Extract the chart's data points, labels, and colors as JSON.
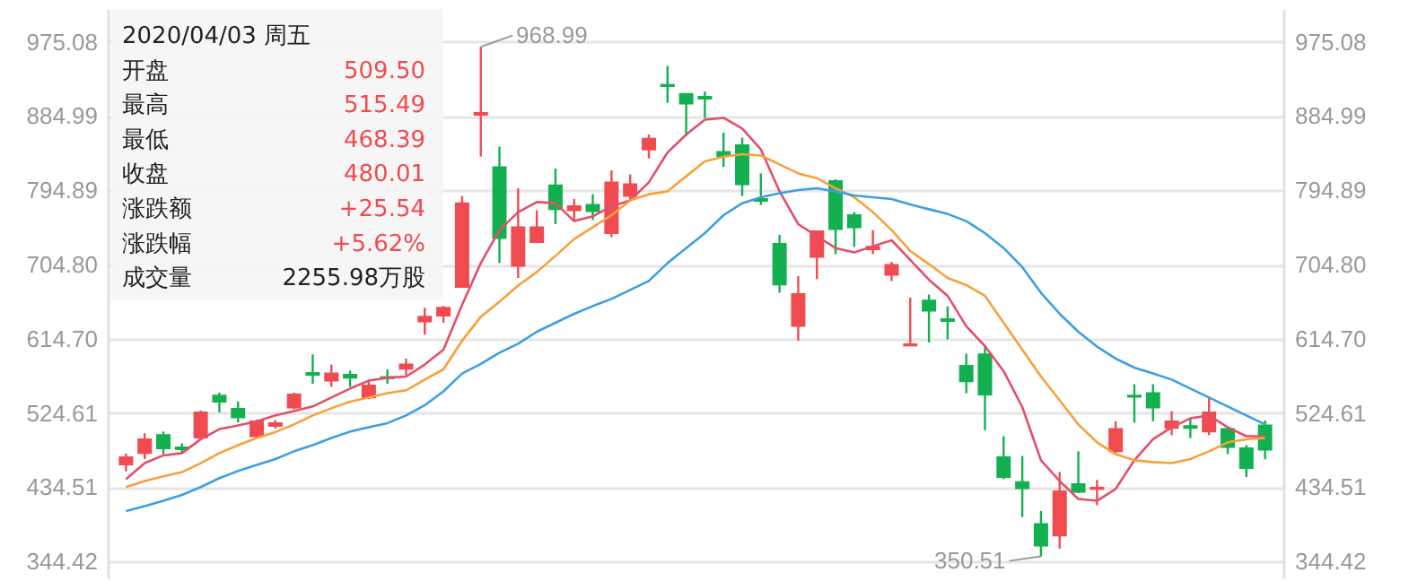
{
  "chart_data": {
    "type": "candlestick",
    "categories": [
      null,
      null,
      null,
      null,
      null,
      null,
      null,
      null,
      null,
      null,
      null,
      null,
      null,
      null,
      null,
      null,
      null,
      null,
      null,
      null,
      null,
      null,
      null,
      null,
      null,
      null,
      null,
      null,
      null,
      null,
      null,
      null,
      null,
      null,
      null,
      null,
      null,
      null,
      null,
      null,
      null,
      null,
      null,
      null,
      null,
      null,
      null,
      null,
      null,
      null,
      null,
      null,
      null,
      null,
      null,
      null,
      null,
      null,
      null,
      null,
      null,
      null
    ],
    "ohlc": [
      [
        462.2,
        475.3,
        453.7,
        470.9
      ],
      [
        475.9,
        499.9,
        468.7,
        492.7
      ],
      [
        497.7,
        502.0,
        474.6,
        481.8
      ],
      [
        482.9,
        487.7,
        475.9,
        480.7
      ],
      [
        494.9,
        527.5,
        494.9,
        525.3
      ],
      [
        545.6,
        549.3,
        525.3,
        538.4
      ],
      [
        529.7,
        538.4,
        512.9,
        519.4
      ],
      [
        496.4,
        516.6,
        494.9,
        514.4
      ],
      [
        509.0,
        516.0,
        505.7,
        512.3
      ],
      [
        531.2,
        549.3,
        529.0,
        547.1
      ],
      [
        573.2,
        595.6,
        560.1,
        571.0
      ],
      [
        563.8,
        583.4,
        556.4,
        572.5
      ],
      [
        571.0,
        576.0,
        556.4,
        567.3
      ],
      [
        543.4,
        565.1,
        541.2,
        558.0
      ],
      [
        568.2,
        577.5,
        560.1,
        566.7
      ],
      [
        578.2,
        590.6,
        570.3,
        583.4
      ],
      [
        635.6,
        652.2,
        619.5,
        641.3
      ],
      [
        642.8,
        654.4,
        634.1,
        652.2
      ],
      [
        677.6,
        788.0,
        677.6,
        779.2
      ],
      [
        886.5,
        968.99,
        835.8,
        888.7
      ],
      [
        822.8,
        848.0,
        706.6,
        737.0
      ],
      [
        703.1,
        797.3,
        688.5,
        750.1
      ],
      [
        732.0,
        770.6,
        732.0,
        750.1
      ],
      [
        801.0,
        821.3,
        753.8,
        771.9
      ],
      [
        770.6,
        784.3,
        757.5,
        775.6
      ],
      [
        777.1,
        790.1,
        758.8,
        769.7
      ],
      [
        742.9,
        819.1,
        737.9,
        804.5
      ],
      [
        788.0,
        814.1,
        782.7,
        802.3
      ],
      [
        844.5,
        862.6,
        833.7,
        857.6
      ],
      [
        922.9,
        945.9,
        901.1,
        921.4
      ],
      [
        912.0,
        912.0,
        860.4,
        900.2
      ],
      [
        908.3,
        914.8,
        882.8,
        906.1
      ],
      [
        841.5,
        864.8,
        823.4,
        836.5
      ],
      [
        849.5,
        858.9,
        788.0,
        802.3
      ],
      [
        784.3,
        815.4,
        777.1,
        782.1
      ],
      [
        729.9,
        740.8,
        670.5,
        680.5
      ],
      [
        630.4,
        690.7,
        612.4,
        669.0
      ],
      [
        714.0,
        745.1,
        687.0,
        745.1
      ],
      [
        806.0,
        808.2,
        717.5,
        747.9
      ],
      [
        764.7,
        768.4,
        726.2,
        750.1
      ],
      [
        723.3,
        746.6,
        717.5,
        726.2
      ],
      [
        692.2,
        708.1,
        684.8,
        704.4
      ],
      [
        606.5,
        664.6,
        606.5,
        608.0
      ],
      [
        660.9,
        668.3,
        610.2,
        648.7
      ],
      [
        638.5,
        653.9,
        614.0,
        636.3
      ],
      [
        581.9,
        596.5,
        548.6,
        563.0
      ],
      [
        595.6,
        606.5,
        503.6,
        547.1
      ],
      [
        470.9,
        496.4,
        444.2,
        447.0
      ],
      [
        440.5,
        472.4,
        398.4,
        433.3
      ],
      [
        389.7,
        405.6,
        350.51,
        363.6
      ],
      [
        375.8,
        453.0,
        360.0,
        429.6
      ],
      [
        438.3,
        478.1,
        427.4,
        428.9
      ],
      [
        432.4,
        443.3,
        412.8,
        433.9
      ],
      [
        478.1,
        514.4,
        475.9,
        505.1
      ],
      [
        545.6,
        559.5,
        512.9,
        544.3
      ],
      [
        548.6,
        559.5,
        514.4,
        531.2
      ],
      [
        506.4,
        526.8,
        497.7,
        514.4
      ],
      [
        508.6,
        518.1,
        494.2,
        506.4
      ],
      [
        502.0,
        543.4,
        497.7,
        525.3
      ],
      [
        505.1,
        507.3,
        474.6,
        483.3
      ],
      [
        481.8,
        485.5,
        447.0,
        457.9
      ],
      [
        509.5,
        515.49,
        468.39,
        480.01
      ]
    ],
    "colors": [
      "#f04b50",
      "#f04b50",
      "#13b050",
      "#13b050",
      "#f04b50",
      "#13b050",
      "#13b050",
      "#f04b50",
      "#f04b50",
      "#f04b50",
      "#13b050",
      "#f04b50",
      "#13b050",
      "#f04b50",
      "#13b050",
      "#f04b50",
      "#f04b50",
      "#f04b50",
      "#f04b50",
      "#f04b50",
      "#13b050",
      "#f04b50",
      "#f04b50",
      "#13b050",
      "#f04b50",
      "#13b050",
      "#f04b50",
      "#f04b50",
      "#f04b50",
      "#13b050",
      "#13b050",
      "#13b050",
      "#13b050",
      "#13b050",
      "#13b050",
      "#13b050",
      "#f04b50",
      "#f04b50",
      "#13b050",
      "#13b050",
      "#f04b50",
      "#f04b50",
      "#f04b50",
      "#13b050",
      "#13b050",
      "#13b050",
      "#13b050",
      "#13b050",
      "#13b050",
      "#13b050",
      "#f04b50",
      "#13b050",
      "#f04b50",
      "#f04b50",
      "#13b050",
      "#13b050",
      "#f04b50",
      "#13b050",
      "#f04b50",
      "#13b050",
      "#13b050",
      "#13b050"
    ],
    "series": [
      {
        "type": "line",
        "color": "#e2506a",
        "values": [
          444.2,
          463.7,
          473.1,
          475.9,
          492.7,
          505.1,
          509.4,
          514.4,
          521.6,
          526.8,
          532.5,
          543.4,
          554.3,
          563.8,
          567.3,
          568.8,
          583.4,
          601.5,
          655.9,
          706.6,
          746.6,
          768.4,
          780.6,
          779.2,
          757.5,
          763.2,
          775.6,
          782.7,
          804.5,
          840.8,
          862.6,
          880.7,
          882.8,
          869.8,
          844.5,
          793.6,
          753.8,
          739.2,
          724.8,
          719.6,
          727.0,
          734.2,
          710.3,
          686.4,
          666.8,
          629.8,
          605.8,
          575.4,
          531.8,
          467.2,
          442.0,
          420.2,
          418.0,
          432.4,
          467.2,
          492.7,
          507.2,
          518.1,
          521.6,
          507.2,
          496.4,
          496.4
        ]
      },
      {
        "type": "line",
        "color": "#f8a03c",
        "values": [
          434.6,
          442.0,
          447.6,
          452.8,
          463.7,
          475.9,
          485.5,
          494.2,
          501.4,
          510.7,
          521.6,
          530.3,
          538.4,
          543.4,
          548.6,
          552.1,
          565.1,
          577.5,
          612.4,
          641.3,
          659.6,
          679.2,
          695.7,
          715.3,
          735.7,
          750.1,
          764.7,
          782.7,
          790.1,
          793.6,
          811.9,
          830.0,
          835.8,
          838.7,
          837.1,
          826.3,
          815.4,
          809.7,
          797.3,
          786.4,
          768.4,
          746.6,
          721.2,
          705.3,
          688.5,
          679.8,
          666.8,
          634.1,
          601.5,
          568.8,
          539.9,
          510.7,
          489.0,
          474.6,
          467.2,
          465.0,
          463.7,
          468.7,
          478.1,
          489.0,
          492.7,
          494.2
        ]
      },
      {
        "type": "line",
        "color": "#3d9fe0",
        "values": [
          405.6,
          411.5,
          418.0,
          425.2,
          434.6,
          445.5,
          454.2,
          461.6,
          468.7,
          478.1,
          485.5,
          494.2,
          502.0,
          507.2,
          512.3,
          521.6,
          534.0,
          550.8,
          572.5,
          584.1,
          597.8,
          608.7,
          623.2,
          634.1,
          645.0,
          654.4,
          663.1,
          674.0,
          684.8,
          706.6,
          724.8,
          742.9,
          764.7,
          779.2,
          786.4,
          791.4,
          795.1,
          797.3,
          793.6,
          788.6,
          786.4,
          784.3,
          777.7,
          771.9,
          766.2,
          757.5,
          742.9,
          724.8,
          701.6,
          670.5,
          645.0,
          623.2,
          605.2,
          590.6,
          579.7,
          572.5,
          565.1,
          554.3,
          543.4,
          532.5,
          521.6,
          510.7
        ]
      }
    ],
    "ylim": [
      325,
      1015
    ],
    "yticks": [
      {
        "value": 344.42,
        "label": "344.42"
      },
      {
        "value": 434.51,
        "label": "434.51"
      },
      {
        "value": 524.61,
        "label": "524.61"
      },
      {
        "value": 614.7,
        "label": "614.70"
      },
      {
        "value": 704.8,
        "label": "704.80"
      },
      {
        "value": 794.89,
        "label": "794.89"
      },
      {
        "value": 884.99,
        "label": "884.99"
      },
      {
        "value": 975.08,
        "label": "975.08"
      }
    ],
    "y2lim": [
      325,
      1015
    ],
    "y2ticks": [
      {
        "value": 344.42,
        "label": "344.42"
      },
      {
        "value": 434.51,
        "label": "434.51"
      },
      {
        "value": 524.61,
        "label": "524.61"
      },
      {
        "value": 614.7,
        "label": "614.70"
      },
      {
        "value": 704.8,
        "label": "704.80"
      },
      {
        "value": 794.89,
        "label": "794.89"
      },
      {
        "value": 884.99,
        "label": "884.99"
      },
      {
        "value": 975.08,
        "label": "975.08"
      }
    ],
    "grid": "y",
    "tick_labels": "y",
    "annotations": [
      "968.99",
      "350.51",
      "2020/04/03 周五",
      "开盘",
      "509.50",
      "最高",
      "515.49",
      "最低",
      "468.39",
      "收盘",
      "480.01",
      "涨跌额",
      "+25.54",
      "涨跌幅",
      "+5.62%",
      "成交量",
      "2255.98万股"
    ]
  }
}
